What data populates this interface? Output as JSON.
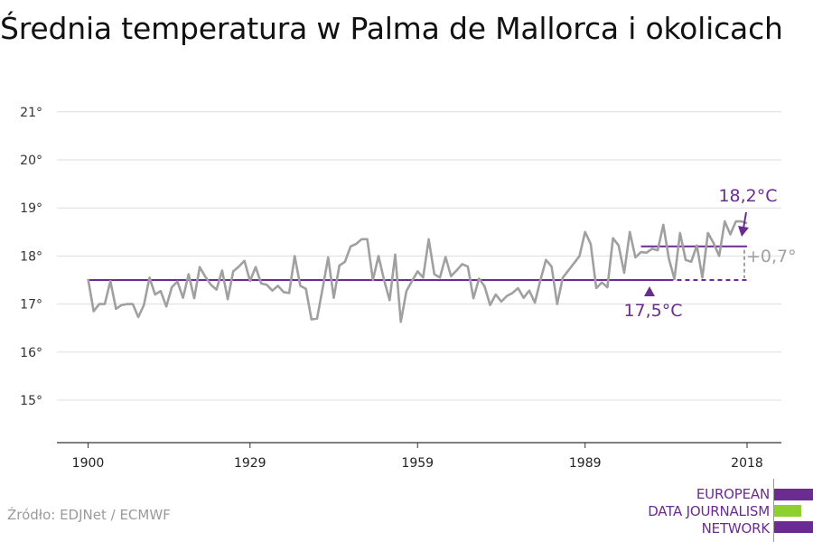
{
  "title": "Średnia temperatura w Palma de Mallorca i okolicach",
  "source": "Źródło: EDJNet / ECMWF",
  "logo": {
    "lines": [
      "EUROPEAN",
      "DATA JOURNALISM",
      "NETWORK"
    ],
    "colors": [
      "#6b2c91",
      "#8ed12f",
      "#6b2c91"
    ]
  },
  "colors": {
    "series": "#a0a0a0",
    "average": "#6b2c91",
    "grid": "#dddddd",
    "axis": "#333333"
  },
  "chart_data": {
    "type": "line",
    "title": "Średnia temperatura w Palma de Mallorca i okolicach",
    "xlabel": "",
    "ylabel": "",
    "xlim": [
      1900,
      2018
    ],
    "ylim": [
      14.2,
      21.6
    ],
    "x_ticks": [
      1900,
      1929,
      1959,
      1989,
      2018
    ],
    "x_tick_labels": [
      "1900",
      "1929",
      "1959",
      "1989",
      "2018"
    ],
    "y_ticks": [
      15,
      16,
      17,
      18,
      19,
      20,
      21
    ],
    "y_tick_labels": [
      "15°",
      "16°",
      "17°",
      "18°",
      "19°",
      "20°",
      "21°"
    ],
    "grid": "horizontal",
    "series": [
      {
        "x": [
          1900,
          1901,
          1902,
          1903,
          1904,
          1905,
          1906,
          1907,
          1908,
          1909,
          1910,
          1911,
          1912,
          1913,
          1914,
          1915,
          1916,
          1917,
          1918,
          1919,
          1920,
          1921,
          1922,
          1923,
          1924,
          1925,
          1926,
          1927,
          1928,
          1929,
          1930,
          1931,
          1932,
          1933,
          1934,
          1935,
          1936,
          1937,
          1938,
          1939,
          1940,
          1941,
          1942,
          1943,
          1944,
          1945,
          1946,
          1947,
          1948,
          1949,
          1950,
          1951,
          1952,
          1953,
          1954,
          1955,
          1956,
          1957,
          1958,
          1959,
          1960,
          1961,
          1962,
          1963,
          1964,
          1965,
          1966,
          1967,
          1968,
          1969,
          1970,
          1971,
          1972,
          1973,
          1974,
          1975,
          1976,
          1977,
          1978,
          1979,
          1980,
          1981,
          1982,
          1983,
          1984,
          1985,
          1986,
          1987,
          1988,
          1989,
          1990,
          1991,
          1992,
          1993,
          1994,
          1995,
          1996,
          1997,
          1998,
          1999,
          2000,
          2001,
          2002,
          2003,
          2004,
          2005,
          2006,
          2007,
          2008,
          2009,
          2010,
          2011,
          2012,
          2013,
          2014,
          2015,
          2016,
          2017,
          2018
        ],
        "values": [
          17.52,
          16.85,
          17.0,
          17.0,
          17.48,
          16.9,
          16.98,
          17.0,
          17.0,
          16.73,
          16.98,
          17.55,
          17.2,
          17.27,
          16.95,
          17.35,
          17.47,
          17.13,
          17.62,
          17.12,
          17.77,
          17.57,
          17.4,
          17.3,
          17.7,
          17.1,
          17.68,
          17.78,
          17.9,
          17.48,
          17.77,
          17.43,
          17.4,
          17.28,
          17.38,
          17.25,
          17.23,
          18.0,
          17.38,
          17.32,
          16.68,
          16.7,
          17.33,
          17.97,
          17.13,
          17.8,
          17.88,
          18.2,
          18.25,
          18.35,
          18.35,
          17.5,
          18.0,
          17.5,
          17.08,
          18.03,
          16.63,
          17.27,
          17.48,
          17.68,
          17.55,
          18.35,
          17.62,
          17.55,
          17.98,
          17.58,
          17.7,
          17.83,
          17.78,
          17.12,
          17.53,
          17.37,
          16.98,
          17.2,
          17.05,
          17.17,
          17.23,
          17.33,
          17.13,
          17.28,
          17.03,
          17.5,
          17.92,
          17.78,
          17.0,
          17.55,
          17.7,
          17.85,
          18.0,
          18.5,
          18.25,
          17.33,
          17.45,
          17.35,
          18.37,
          18.22,
          17.65,
          18.5,
          17.97,
          18.08,
          18.07,
          18.15,
          18.12,
          18.65,
          17.95,
          17.52,
          18.48,
          17.92,
          17.88,
          18.22,
          17.55,
          18.48,
          18.27,
          18.0,
          18.72,
          18.45,
          18.72,
          18.72,
          18.68
        ]
      }
    ],
    "reference_lines": [
      {
        "label": "17,5°C",
        "value": 17.5,
        "from": 1900,
        "to": 2004,
        "dashed_to": 2018
      },
      {
        "label": "18,2°C",
        "value": 18.2,
        "from": 1999,
        "to": 2018
      }
    ],
    "annotations": [
      {
        "text": "18,2°C",
        "x": 2018,
        "y": 18.2
      },
      {
        "text": "17,5°C",
        "x": 2004,
        "y": 17.5
      },
      {
        "text": "+0,7°",
        "x": 2018,
        "y": 17.85
      }
    ]
  }
}
